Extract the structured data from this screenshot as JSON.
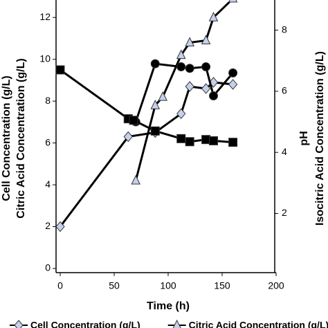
{
  "chart_data": {
    "type": "line",
    "x_label": "Time (h)",
    "y_labels": [
      "Cell Concentration (g/L)",
      "Citric Acid Concentration (g/L)"
    ],
    "y2_labels": [
      "pH",
      "Isocitric Acid Concentration (g/L)"
    ],
    "xlim": [
      0,
      200
    ],
    "xticks": [
      0,
      50,
      100,
      150,
      200
    ],
    "ylim": [
      0,
      13
    ],
    "yticks": [
      0,
      2,
      4,
      6,
      8,
      10,
      12
    ],
    "y2lim": [
      0.2,
      9.1
    ],
    "y2ticks": [
      2,
      4,
      6,
      8
    ],
    "series": [
      {
        "name": "Cell Concentration (g/L)",
        "marker": "diamond",
        "color": "#c5d0ec",
        "axis": "y",
        "x": [
          0,
          63,
          88,
          112,
          120,
          135,
          142,
          160
        ],
        "values": [
          2,
          6.3,
          6.5,
          7.4,
          8.7,
          8.6,
          8.9,
          8.8
        ]
      },
      {
        "name": "Citric Acid Concentration (g/L)",
        "marker": "triangle",
        "color": "#c5d0ec",
        "axis": "y",
        "x": [
          70,
          88,
          95,
          112,
          120,
          135,
          142,
          160
        ],
        "values": [
          4.2,
          7.8,
          8.2,
          10.2,
          10.8,
          10.9,
          12,
          12.9
        ]
      },
      {
        "marker": "circle",
        "color": "#000000",
        "axis": "y2",
        "x": [
          70,
          88,
          112,
          120,
          135,
          142,
          160
        ],
        "values": [
          5.0,
          6.9,
          6.8,
          6.75,
          6.8,
          5.85,
          6.6
        ]
      },
      {
        "marker": "square",
        "color": "#000000",
        "axis": "y2",
        "x": [
          0,
          63,
          68,
          88,
          112,
          120,
          135,
          142,
          160
        ],
        "values": [
          6.7,
          5.1,
          5.05,
          4.7,
          4.45,
          4.35,
          4.42,
          4.38,
          4.33
        ]
      }
    ]
  }
}
